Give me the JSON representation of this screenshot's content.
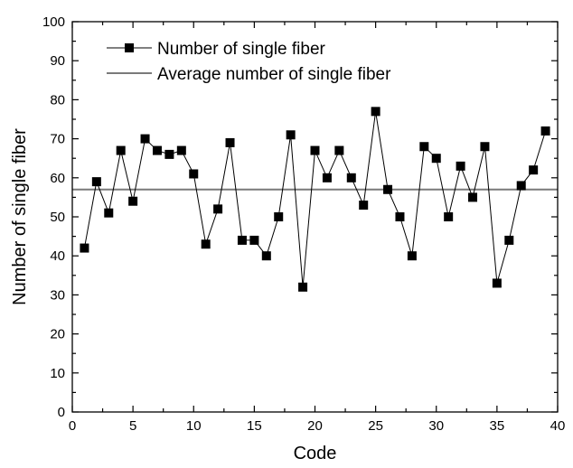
{
  "chart_data": {
    "type": "line",
    "title": "",
    "xlabel": "Code",
    "ylabel": "Number of single fiber",
    "xlim": [
      0,
      40
    ],
    "ylim": [
      0,
      100
    ],
    "x_ticks": [
      0,
      5,
      10,
      15,
      20,
      25,
      30,
      35,
      40
    ],
    "y_ticks": [
      0,
      10,
      20,
      30,
      40,
      50,
      60,
      70,
      80,
      90,
      100
    ],
    "grid": false,
    "legend_position": "top-left",
    "series": [
      {
        "name": "Number of single fiber",
        "marker": "square",
        "color": "#000000",
        "x": [
          1,
          2,
          3,
          4,
          5,
          6,
          7,
          8,
          9,
          10,
          11,
          12,
          13,
          14,
          15,
          16,
          17,
          18,
          19,
          20,
          21,
          22,
          23,
          24,
          25,
          26,
          27,
          28,
          29,
          30,
          31,
          32,
          33,
          34,
          35,
          36,
          37,
          38,
          39
        ],
        "values": [
          42,
          59,
          51,
          67,
          54,
          70,
          67,
          66,
          67,
          61,
          43,
          52,
          69,
          44,
          44,
          40,
          50,
          71,
          32,
          67,
          60,
          67,
          60,
          53,
          77,
          57,
          50,
          40,
          68,
          65,
          50,
          63,
          55,
          68,
          33,
          44,
          58,
          62,
          72
        ]
      },
      {
        "name": "Average number of single fiber",
        "type": "hline",
        "color": "#7a7a7a",
        "value": 57
      }
    ]
  }
}
